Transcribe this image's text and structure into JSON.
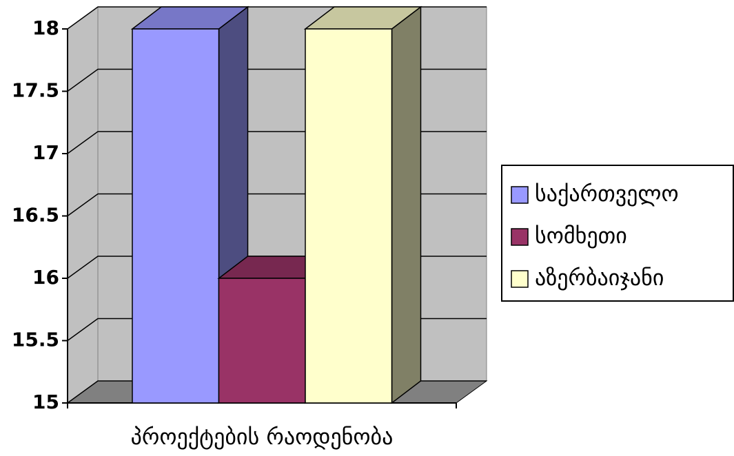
{
  "chart_data": {
    "type": "bar3d",
    "categories": [
      "პროექტების რაოდენობა"
    ],
    "series": [
      {
        "name": "საქართველო",
        "color": "#9999ff",
        "values": [
          18
        ]
      },
      {
        "name": "სომხეთი",
        "color": "#993366",
        "values": [
          16
        ]
      },
      {
        "name": "აზერბაიჯანი",
        "color": "#ffffcc",
        "values": [
          18
        ]
      }
    ],
    "ylim": [
      15,
      18
    ],
    "yticks": [
      15,
      15.5,
      16,
      16.5,
      17,
      17.5,
      18
    ],
    "grid": true,
    "legend": "right"
  }
}
